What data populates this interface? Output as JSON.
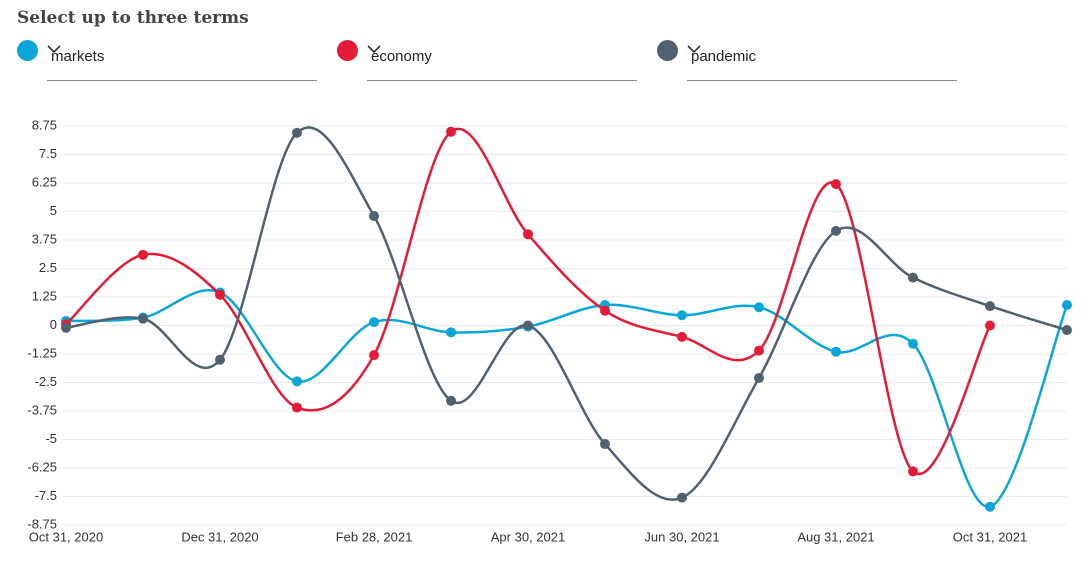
{
  "chart_data": {
    "type": "line",
    "title": "Select up to three terms",
    "categories": [
      "Oct 31, 2020",
      null,
      "Dec 31, 2020",
      null,
      "Feb 28, 2021",
      null,
      "Apr 30, 2021",
      null,
      "Jun 30, 2021",
      null,
      "Aug 31, 2021",
      null,
      "Oct 31, 2021",
      null
    ],
    "series": [
      {
        "name": "markets",
        "color": "#0aa6d8",
        "values": [
          0.2,
          0.35,
          1.45,
          -2.45,
          0.15,
          -0.3,
          -0.05,
          0.9,
          0.45,
          0.8,
          -1.15,
          -0.8,
          -7.95,
          0.9
        ]
      },
      {
        "name": "economy",
        "color": "#e31b36",
        "values": [
          0.05,
          3.1,
          1.35,
          -3.6,
          -1.3,
          8.5,
          4.0,
          0.65,
          -0.5,
          -1.1,
          6.2,
          -6.4,
          0,
          null
        ]
      },
      {
        "name": "pandemic",
        "color": "#50616f",
        "values": [
          -0.1,
          0.3,
          -1.5,
          8.45,
          4.8,
          -3.3,
          0,
          -5.2,
          -7.55,
          -2.3,
          4.15,
          2.1,
          0.85,
          -0.2
        ]
      }
    ],
    "ylim": [
      -8.75,
      8.75
    ],
    "yticks": [
      -8.75,
      -7.5,
      -6.25,
      -5,
      -3.75,
      -2.5,
      -1.25,
      0,
      1.25,
      2.5,
      3.75,
      5,
      6.25,
      7.5,
      8.75
    ],
    "grid": true
  }
}
